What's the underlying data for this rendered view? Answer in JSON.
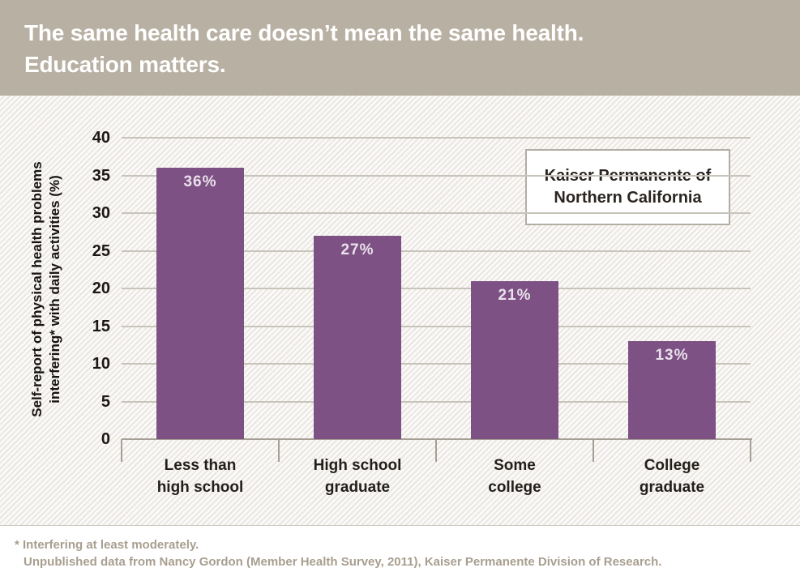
{
  "header": {
    "title_line1": "The same health care doesn’t mean the same health.",
    "title_line2": "Education matters."
  },
  "annotation_box": {
    "line1": "Kaiser Permanente of",
    "line2": "Northern California"
  },
  "footnotes": {
    "line1": "* Interfering at least moderately.",
    "line2": "Unpublished data from Nancy Gordon (Member Health Survey, 2011), Kaiser Permanente Division of Research."
  },
  "chart_data": {
    "type": "bar",
    "categories": [
      "Less than high school",
      "High school graduate",
      "Some college",
      "College graduate"
    ],
    "category_lines": [
      [
        "Less than",
        "high school"
      ],
      [
        "High school",
        "graduate"
      ],
      [
        "Some",
        "college"
      ],
      [
        "College",
        "graduate"
      ]
    ],
    "values": [
      36,
      27,
      21,
      13
    ],
    "value_labels": [
      "36%",
      "27%",
      "21%",
      "13%"
    ],
    "title": "",
    "xlabel": "",
    "ylabel_line1": "Self-report of physical health problems",
    "ylabel_line2": "interfering* with daily activities (%)",
    "ylim": [
      0,
      40
    ],
    "yticks": [
      0,
      5,
      10,
      15,
      20,
      25,
      30,
      35,
      40
    ],
    "grid": true,
    "legend_position": "none",
    "annotation": "Kaiser Permanente of Northern California"
  },
  "colors": {
    "header_bg": "#b8b0a3",
    "header_text": "#ffffff",
    "bar_fill": "#7d5184",
    "bar_label_text": "#e9e1eb",
    "gridline": "#c8c4bb",
    "axis_line": "#a59f95",
    "tick_label_text": "#1b1815",
    "annotation_border": "#b3ada4",
    "footnote_text": "#a89e90",
    "chart_bg": "#faf9f7",
    "hatch_line": "#e7e4df"
  }
}
